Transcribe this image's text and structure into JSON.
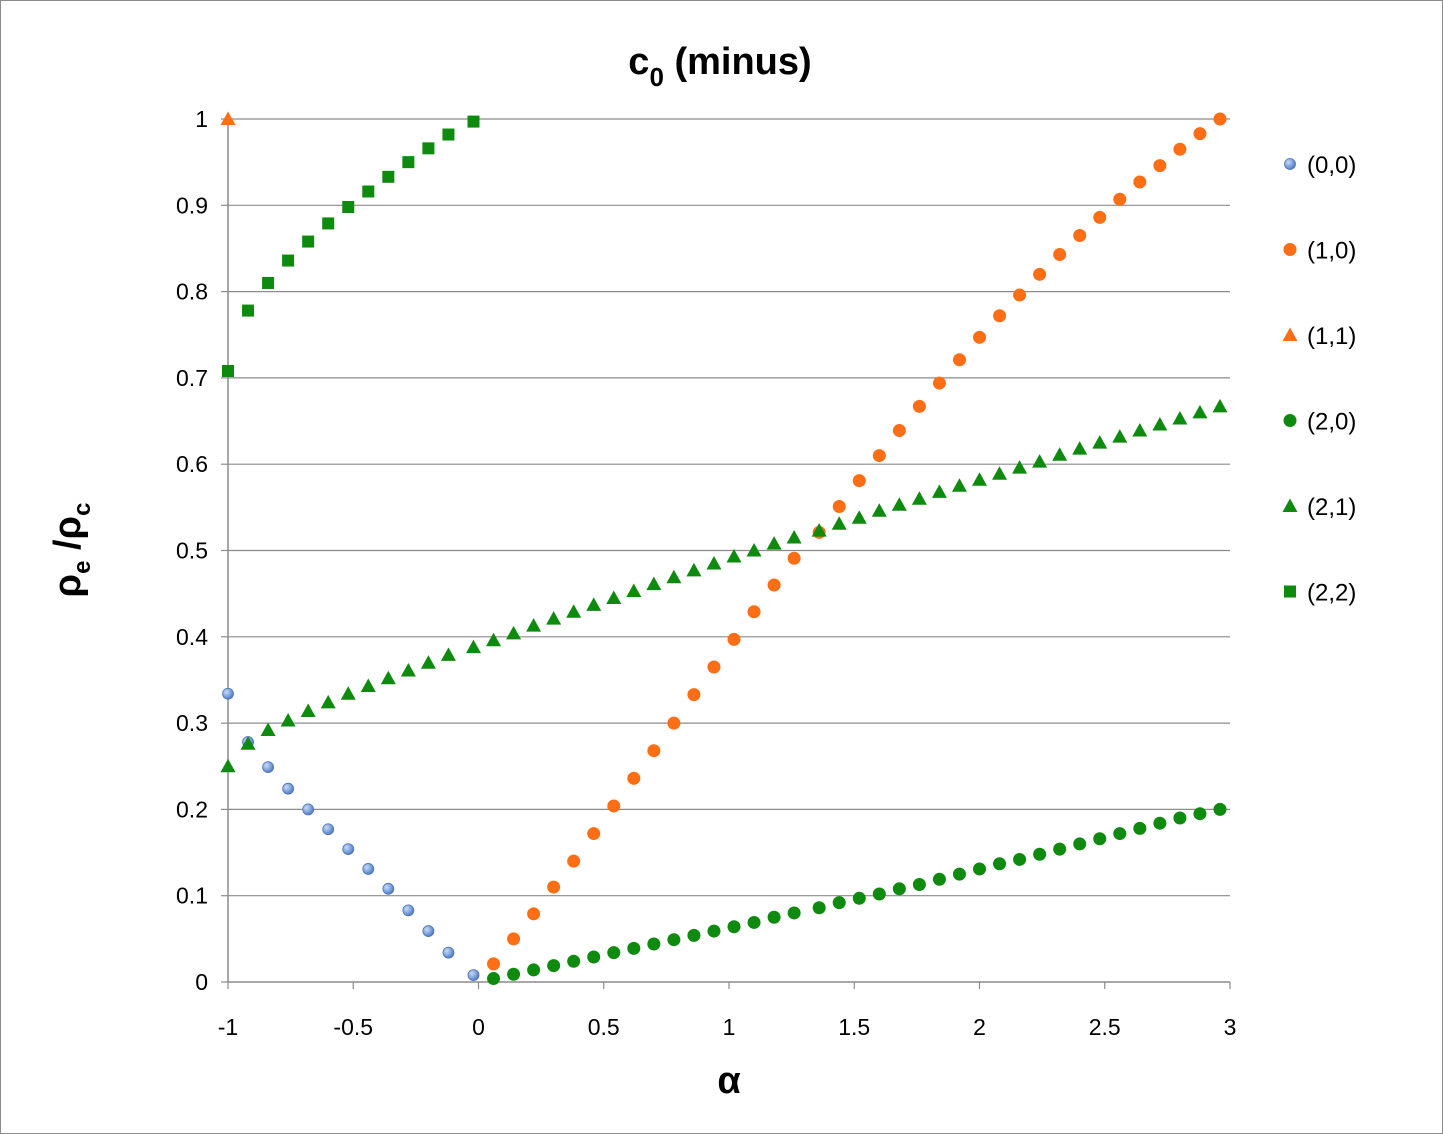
{
  "chart_data": {
    "type": "scatter",
    "title": {
      "main": "c",
      "sub": "0",
      "rest": " (minus)"
    },
    "xlabel": "α",
    "ylabel": {
      "a": "ρ",
      "a_sub": "e",
      "sep": " /",
      "b": "ρ",
      "b_sub": "c"
    },
    "xlim": [
      -1,
      3
    ],
    "ylim": [
      0,
      1
    ],
    "x_ticks": [
      "-1",
      "-0.5",
      "0",
      "0.5",
      "1",
      "1.5",
      "2",
      "2.5",
      "3"
    ],
    "y_ticks": [
      "0",
      "0.1",
      "0.2",
      "0.3",
      "0.4",
      "0.5",
      "0.6",
      "0.7",
      "0.8",
      "0.9",
      "1"
    ],
    "grid": "horizontal",
    "legend_position": "right",
    "series": [
      {
        "name": "(0,0)",
        "marker": "circle-small",
        "color": "#6f94d6",
        "x": [
          -1.0,
          -0.92,
          -0.84,
          -0.76,
          -0.68,
          -0.6,
          -0.52,
          -0.44,
          -0.36,
          -0.28,
          -0.2,
          -0.12,
          -0.02
        ],
        "y": [
          0.334,
          0.278,
          0.249,
          0.224,
          0.2,
          0.177,
          0.154,
          0.131,
          0.108,
          0.083,
          0.059,
          0.034,
          0.008
        ]
      },
      {
        "name": "(1,0)",
        "marker": "circle",
        "color": "#ff6d14",
        "x": [
          0.06,
          0.14,
          0.22,
          0.3,
          0.38,
          0.46,
          0.54,
          0.62,
          0.7,
          0.78,
          0.86,
          0.94,
          1.02,
          1.1,
          1.18,
          1.26,
          1.36,
          1.44,
          1.52,
          1.6,
          1.68,
          1.76,
          1.84,
          1.92,
          2.0,
          2.08,
          2.16,
          2.24,
          2.32,
          2.4,
          2.48,
          2.56,
          2.64,
          2.72,
          2.8,
          2.88,
          2.96
        ],
        "y": [
          0.021,
          0.05,
          0.079,
          0.11,
          0.14,
          0.172,
          0.204,
          0.236,
          0.268,
          0.3,
          0.333,
          0.365,
          0.397,
          0.429,
          0.46,
          0.491,
          0.521,
          0.551,
          0.581,
          0.61,
          0.639,
          0.667,
          0.694,
          0.721,
          0.747,
          0.772,
          0.796,
          0.82,
          0.843,
          0.865,
          0.886,
          0.907,
          0.927,
          0.946,
          0.965,
          0.983,
          1.0
        ]
      },
      {
        "name": "(1,1)",
        "marker": "triangle",
        "color": "#ff6d14",
        "x": [
          -1.0
        ],
        "y": [
          1.0
        ]
      },
      {
        "name": "(2,0)",
        "marker": "circle",
        "color": "#0e8a0e",
        "x": [
          0.06,
          0.14,
          0.22,
          0.3,
          0.38,
          0.46,
          0.54,
          0.62,
          0.7,
          0.78,
          0.86,
          0.94,
          1.02,
          1.1,
          1.18,
          1.26,
          1.36,
          1.44,
          1.52,
          1.6,
          1.68,
          1.76,
          1.84,
          1.92,
          2.0,
          2.08,
          2.16,
          2.24,
          2.32,
          2.4,
          2.48,
          2.56,
          2.64,
          2.72,
          2.8,
          2.88,
          2.96
        ],
        "y": [
          0.004,
          0.009,
          0.014,
          0.019,
          0.024,
          0.029,
          0.034,
          0.039,
          0.044,
          0.049,
          0.054,
          0.059,
          0.064,
          0.069,
          0.075,
          0.08,
          0.086,
          0.092,
          0.097,
          0.102,
          0.108,
          0.113,
          0.119,
          0.125,
          0.131,
          0.137,
          0.142,
          0.148,
          0.154,
          0.16,
          0.166,
          0.172,
          0.178,
          0.184,
          0.19,
          0.195,
          0.2
        ]
      },
      {
        "name": "(2,1)",
        "marker": "triangle",
        "color": "#0e8a0e",
        "x": [
          -1.0,
          -0.92,
          -0.84,
          -0.76,
          -0.68,
          -0.6,
          -0.52,
          -0.44,
          -0.36,
          -0.28,
          -0.2,
          -0.12,
          -0.02,
          0.06,
          0.14,
          0.22,
          0.3,
          0.38,
          0.46,
          0.54,
          0.62,
          0.7,
          0.78,
          0.86,
          0.94,
          1.02,
          1.1,
          1.18,
          1.26,
          1.36,
          1.44,
          1.52,
          1.6,
          1.68,
          1.76,
          1.84,
          1.92,
          2.0,
          2.08,
          2.16,
          2.24,
          2.32,
          2.4,
          2.48,
          2.56,
          2.64,
          2.72,
          2.8,
          2.88,
          2.96
        ],
        "y": [
          0.25,
          0.276,
          0.292,
          0.303,
          0.314,
          0.324,
          0.334,
          0.343,
          0.352,
          0.361,
          0.37,
          0.379,
          0.388,
          0.396,
          0.404,
          0.413,
          0.421,
          0.429,
          0.437,
          0.445,
          0.453,
          0.461,
          0.469,
          0.477,
          0.485,
          0.493,
          0.5,
          0.508,
          0.515,
          0.523,
          0.531,
          0.538,
          0.546,
          0.553,
          0.56,
          0.568,
          0.575,
          0.582,
          0.589,
          0.596,
          0.603,
          0.611,
          0.618,
          0.625,
          0.632,
          0.639,
          0.646,
          0.653,
          0.66,
          0.667
        ]
      },
      {
        "name": "(2,2)",
        "marker": "square",
        "color": "#0e8a0e",
        "x": [
          -1.0,
          -0.92,
          -0.84,
          -0.76,
          -0.68,
          -0.6,
          -0.52,
          -0.44,
          -0.36,
          -0.28,
          -0.2,
          -0.12,
          -0.02
        ],
        "y": [
          0.708,
          0.778,
          0.81,
          0.836,
          0.858,
          0.879,
          0.898,
          0.916,
          0.933,
          0.95,
          0.966,
          0.982,
          0.997
        ]
      }
    ]
  }
}
